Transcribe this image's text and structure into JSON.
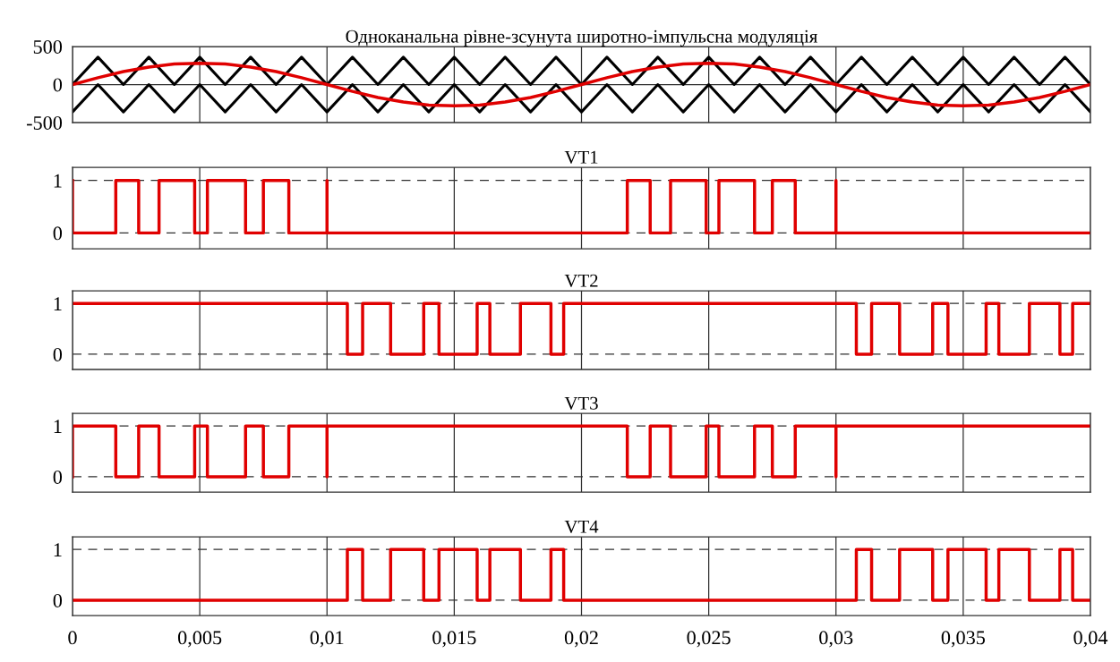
{
  "chart_data": [
    {
      "type": "line",
      "title": "Одноканальна рівне-зсунута широтно-імпульсна модуляція",
      "xlim": [
        0,
        0.04
      ],
      "ylim": [
        -500,
        500
      ],
      "yticks": [
        -500,
        0,
        500
      ],
      "xticks": [
        {
          "value": 0,
          "label": null
        },
        {
          "value": 0.005,
          "label": null
        },
        {
          "value": 0.01,
          "label": null
        },
        {
          "value": 0.015,
          "label": null
        },
        {
          "value": 0.02,
          "label": null
        },
        {
          "value": 0.025,
          "label": null
        },
        {
          "value": 0.03,
          "label": null
        },
        {
          "value": 0.035,
          "label": null
        },
        {
          "value": 0.04,
          "label": null
        }
      ],
      "tick_labels": "y",
      "grid": true,
      "x": [
        0,
        0.001,
        0.002,
        0.003,
        0.004,
        0.005,
        0.006,
        0.007,
        0.008,
        0.009,
        0.01,
        0.011,
        0.012,
        0.013,
        0.014,
        0.015,
        0.016,
        0.017,
        0.018,
        0.019,
        0.02,
        0.021,
        0.022,
        0.023,
        0.024,
        0.025,
        0.026,
        0.027,
        0.028,
        0.029,
        0.03,
        0.031,
        0.032,
        0.033,
        0.034,
        0.035,
        0.036,
        0.037,
        0.038,
        0.039,
        0.04
      ],
      "series": [
        {
          "color": "#000000",
          "values": [
            0,
            360,
            0,
            360,
            0,
            360,
            0,
            360,
            0,
            360,
            0,
            360,
            0,
            360,
            0,
            360,
            0,
            360,
            0,
            360,
            0,
            360,
            0,
            360,
            0,
            360,
            0,
            360,
            0,
            360,
            0,
            360,
            0,
            360,
            0,
            360,
            0,
            360,
            0,
            360,
            0
          ]
        },
        {
          "color": "#000000",
          "values": [
            -360,
            0,
            -360,
            0,
            -360,
            0,
            -360,
            0,
            -360,
            0,
            -360,
            0,
            -360,
            0,
            -360,
            0,
            -360,
            0,
            -360,
            0,
            -360,
            0,
            -360,
            0,
            -360,
            0,
            -360,
            0,
            -360,
            0,
            -360,
            0,
            -360,
            0,
            -360,
            0,
            -360,
            0,
            -360,
            0,
            -360
          ]
        },
        {
          "color": "#e00000",
          "values": [
            0,
            90,
            170,
            230,
            270,
            280,
            270,
            230,
            170,
            90,
            0,
            -90,
            -170,
            -230,
            -270,
            -280,
            -270,
            -230,
            -170,
            -90,
            0,
            90,
            170,
            230,
            270,
            280,
            270,
            230,
            170,
            90,
            0,
            -90,
            -170,
            -230,
            -270,
            -280,
            -270,
            -230,
            -170,
            -90,
            0
          ]
        }
      ]
    },
    {
      "type": "step",
      "title": "VT1",
      "xlim": [
        0,
        0.04
      ],
      "ylim": [
        -0.3,
        1.25
      ],
      "yticks": [
        0,
        1
      ],
      "xticks": [
        {
          "value": 0,
          "label": null
        },
        {
          "value": 0.005,
          "label": null
        },
        {
          "value": 0.01,
          "label": null
        },
        {
          "value": 0.015,
          "label": null
        },
        {
          "value": 0.02,
          "label": null
        },
        {
          "value": 0.025,
          "label": null
        },
        {
          "value": 0.03,
          "label": null
        },
        {
          "value": 0.035,
          "label": null
        },
        {
          "value": 0.04,
          "label": null
        }
      ],
      "tick_labels": "y",
      "grid": true,
      "series": [
        {
          "color": "#e00000",
          "x": [
            0,
            0,
            0.0017,
            0.0026,
            0.0034,
            0.0048,
            0.0053,
            0.0068,
            0.0075,
            0.0085,
            0.01,
            0.01,
            0.0218,
            0.0227,
            0.0235,
            0.0249,
            0.0254,
            0.0268,
            0.0275,
            0.0284,
            0.03,
            0.03,
            0.04
          ],
          "values": [
            1,
            0,
            1,
            0,
            1,
            0,
            1,
            0,
            1,
            0,
            1,
            0,
            1,
            0,
            1,
            0,
            1,
            0,
            1,
            0,
            1,
            0,
            0
          ]
        }
      ]
    },
    {
      "type": "step",
      "title": "VT2",
      "xlim": [
        0,
        0.04
      ],
      "ylim": [
        -0.3,
        1.25
      ],
      "yticks": [
        0,
        1
      ],
      "xticks": [
        {
          "value": 0,
          "label": null
        },
        {
          "value": 0.005,
          "label": null
        },
        {
          "value": 0.01,
          "label": null
        },
        {
          "value": 0.015,
          "label": null
        },
        {
          "value": 0.02,
          "label": null
        },
        {
          "value": 0.025,
          "label": null
        },
        {
          "value": 0.03,
          "label": null
        },
        {
          "value": 0.035,
          "label": null
        },
        {
          "value": 0.04,
          "label": null
        }
      ],
      "tick_labels": "y",
      "grid": true,
      "series": [
        {
          "color": "#e00000",
          "x": [
            0,
            0.0108,
            0.0114,
            0.0125,
            0.0138,
            0.0144,
            0.0159,
            0.0164,
            0.0176,
            0.0188,
            0.0193,
            0.0308,
            0.0314,
            0.0325,
            0.0338,
            0.0344,
            0.0359,
            0.0364,
            0.0376,
            0.0388,
            0.0393,
            0.04
          ],
          "values": [
            1,
            0,
            1,
            0,
            1,
            0,
            1,
            0,
            1,
            0,
            1,
            0,
            1,
            0,
            1,
            0,
            1,
            0,
            1,
            0,
            1,
            1
          ]
        }
      ]
    },
    {
      "type": "step",
      "title": "VT3",
      "xlim": [
        0,
        0.04
      ],
      "ylim": [
        -0.3,
        1.25
      ],
      "yticks": [
        0,
        1
      ],
      "xticks": [
        {
          "value": 0,
          "label": null
        },
        {
          "value": 0.005,
          "label": null
        },
        {
          "value": 0.01,
          "label": null
        },
        {
          "value": 0.015,
          "label": null
        },
        {
          "value": 0.02,
          "label": null
        },
        {
          "value": 0.025,
          "label": null
        },
        {
          "value": 0.03,
          "label": null
        },
        {
          "value": 0.035,
          "label": null
        },
        {
          "value": 0.04,
          "label": null
        }
      ],
      "tick_labels": "y",
      "grid": true,
      "series": [
        {
          "color": "#e00000",
          "x": [
            0,
            0,
            0.0017,
            0.0026,
            0.0034,
            0.0048,
            0.0053,
            0.0068,
            0.0075,
            0.0085,
            0.01,
            0.01,
            0.0218,
            0.0227,
            0.0235,
            0.0249,
            0.0254,
            0.0268,
            0.0275,
            0.0284,
            0.03,
            0.03,
            0.04
          ],
          "values": [
            0,
            1,
            0,
            1,
            0,
            1,
            0,
            1,
            0,
            1,
            0,
            1,
            0,
            1,
            0,
            1,
            0,
            1,
            0,
            1,
            0,
            1,
            1
          ]
        }
      ]
    },
    {
      "type": "step",
      "title": "VT4",
      "xlim": [
        0,
        0.04
      ],
      "ylim": [
        -0.3,
        1.25
      ],
      "yticks": [
        0,
        1
      ],
      "xticks": [
        0,
        {
          "value": 0.005,
          "label": "0,005"
        },
        {
          "value": 0.01,
          "label": "0,01"
        },
        {
          "value": 0.015,
          "label": "0,015"
        },
        {
          "value": 0.02,
          "label": "0,02"
        },
        {
          "value": 0.025,
          "label": "0,025"
        },
        {
          "value": 0.03,
          "label": "0,03"
        },
        {
          "value": 0.035,
          "label": "0,035"
        },
        {
          "value": 0.04,
          "label": "0,04"
        }
      ],
      "grid": true,
      "series": [
        {
          "color": "#e00000",
          "x": [
            0,
            0.0108,
            0.0114,
            0.0125,
            0.0138,
            0.0144,
            0.0159,
            0.0164,
            0.0176,
            0.0188,
            0.0193,
            0.0308,
            0.0314,
            0.0325,
            0.0338,
            0.0344,
            0.0359,
            0.0364,
            0.0376,
            0.0388,
            0.0393,
            0.04
          ],
          "values": [
            0,
            1,
            0,
            1,
            0,
            1,
            0,
            1,
            0,
            1,
            0,
            1,
            0,
            1,
            0,
            1,
            0,
            1,
            0,
            1,
            0,
            0
          ]
        }
      ]
    }
  ]
}
